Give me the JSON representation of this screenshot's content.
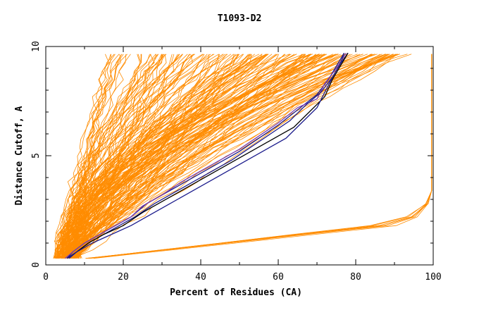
{
  "chart_data": {
    "type": "line",
    "title": "T1093-D2",
    "xlabel": "Percent of Residues (CA)",
    "ylabel": "Distance Cutoff, A",
    "xlim": [
      0,
      100
    ],
    "ylim": [
      0,
      10
    ],
    "xticks": [
      "0",
      "20",
      "40",
      "60",
      "80",
      "100"
    ],
    "yticks": [
      "0",
      "5",
      "10"
    ],
    "grid": false,
    "colors": {
      "models": "#ff8c00",
      "highlight": "#1c1c8c",
      "highlight_dark": "#000000",
      "highlight_purple": "#7b3fb0"
    },
    "highlight_series": [
      {
        "x": [
          5.5,
          7,
          10,
          14,
          19,
          22,
          26,
          30,
          35,
          40,
          45,
          50,
          55,
          60,
          65,
          70,
          73,
          75,
          77
        ],
        "y": [
          0.3,
          0.6,
          1.0,
          1.4,
          1.9,
          2.2,
          2.8,
          3.2,
          3.7,
          4.2,
          4.7,
          5.2,
          5.8,
          6.4,
          7.1,
          7.8,
          8.5,
          9.1,
          9.7
        ]
      },
      {
        "x": [
          5,
          7,
          10,
          14,
          19,
          22,
          25,
          30,
          35,
          40,
          45,
          50,
          55,
          60,
          65,
          70,
          72,
          75,
          77.5
        ],
        "y": [
          0.3,
          0.6,
          1.0,
          1.4,
          1.9,
          2.2,
          2.7,
          3.2,
          3.8,
          4.3,
          4.8,
          5.3,
          5.9,
          6.5,
          7.2,
          7.6,
          8.3,
          9.0,
          9.7
        ]
      },
      {
        "x": [
          6,
          8,
          11,
          15,
          20,
          23,
          28,
          33,
          38,
          43,
          48,
          53,
          58,
          63,
          67,
          71,
          74,
          76,
          78
        ],
        "y": [
          0.3,
          0.6,
          1.0,
          1.4,
          1.9,
          2.2,
          2.8,
          3.3,
          3.8,
          4.3,
          4.8,
          5.4,
          6.0,
          6.6,
          7.3,
          7.9,
          8.6,
          9.2,
          9.7
        ]
      },
      {
        "x": [
          5.5,
          8,
          11,
          15,
          20,
          25,
          30,
          35,
          40,
          45,
          50,
          55,
          60,
          64,
          68,
          72,
          74,
          76,
          78
        ],
        "y": [
          0.3,
          0.6,
          1.0,
          1.4,
          1.8,
          2.4,
          2.9,
          3.4,
          3.9,
          4.4,
          4.9,
          5.4,
          5.9,
          6.3,
          7.0,
          7.7,
          8.5,
          9.1,
          9.7
        ]
      },
      {
        "x": [
          5.5,
          8,
          12,
          17,
          22,
          27,
          32,
          37,
          42,
          47,
          52,
          57,
          62,
          66,
          70,
          72,
          74,
          76,
          77
        ],
        "y": [
          0.3,
          0.6,
          1.0,
          1.4,
          1.8,
          2.3,
          2.8,
          3.3,
          3.8,
          4.3,
          4.8,
          5.3,
          5.8,
          6.5,
          7.2,
          7.9,
          8.6,
          9.2,
          9.7
        ]
      }
    ]
  }
}
